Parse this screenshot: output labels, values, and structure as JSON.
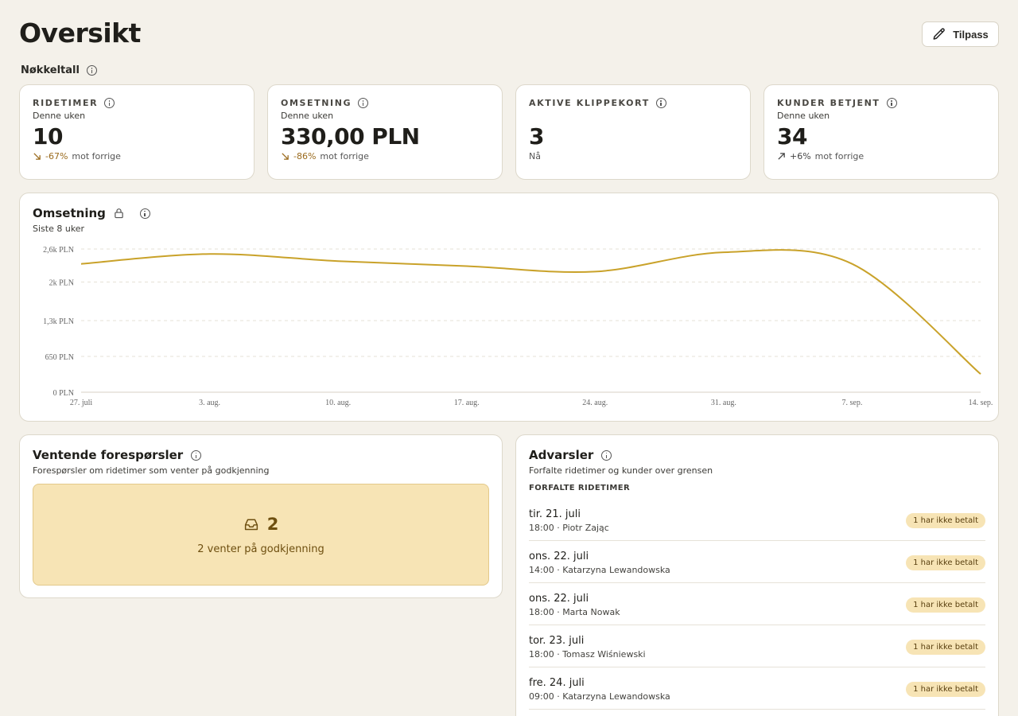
{
  "header": {
    "title": "Oversikt",
    "customize_label": "Tilpass"
  },
  "kpi_section": {
    "label": "Nøkkeltall"
  },
  "kpis": [
    {
      "title": "RIDETIMER",
      "sub": "Denne uken",
      "value": "10",
      "change": "-67%",
      "change_suffix": "mot forrige",
      "direction": "down"
    },
    {
      "title": "OMSETNING",
      "sub": "Denne uken",
      "value": "330,00 PLN",
      "change": "-86%",
      "change_suffix": "mot forrige",
      "direction": "down"
    },
    {
      "title": "AKTIVE KLIPPEKORT",
      "sub": "",
      "value": "3",
      "change": "",
      "change_suffix": "Nå",
      "direction": "none"
    },
    {
      "title": "KUNDER BETJENT",
      "sub": "Denne uken",
      "value": "34",
      "change": "+6%",
      "change_suffix": "mot forrige",
      "direction": "up"
    }
  ],
  "revenue_chart": {
    "title": "Omsetning",
    "subtitle": "Siste 8 uker"
  },
  "chart_data": {
    "type": "line",
    "title": "Omsetning",
    "subtitle": "Siste 8 uker",
    "x": [
      "27. juli",
      "3. aug.",
      "10. aug.",
      "17. aug.",
      "24. aug.",
      "31. aug.",
      "7. sep.",
      "14. sep."
    ],
    "series": [
      {
        "values": [
          2330,
          2510,
          2380,
          2290,
          2190,
          2540,
          2330,
          330
        ]
      }
    ],
    "yticks": [
      0,
      650,
      1300,
      2000,
      2600
    ],
    "yticklabels": [
      "0 PLN",
      "650 PLN",
      "1,3k PLN",
      "2k PLN",
      "2,6k PLN"
    ],
    "ylim": [
      0,
      2600
    ],
    "grid": true,
    "color": "#c9a22a"
  },
  "pending": {
    "title": "Ventende forespørsler",
    "subtitle": "Forespørsler om ridetimer som venter på godkjenning",
    "count": "2",
    "text": "2 venter på godkjenning"
  },
  "alerts": {
    "title": "Advarsler",
    "subtitle": "Forfalte ridetimer og kunder over grensen",
    "section_heading": "FORFALTE RIDETIMER",
    "items": [
      {
        "date": "tir. 21. juli",
        "meta": "18:00 · Piotr Zając",
        "badge": "1 har ikke betalt"
      },
      {
        "date": "ons. 22. juli",
        "meta": "14:00 · Katarzyna Lewandowska",
        "badge": "1 har ikke betalt"
      },
      {
        "date": "ons. 22. juli",
        "meta": "18:00 · Marta Nowak",
        "badge": "1 har ikke betalt"
      },
      {
        "date": "tor. 23. juli",
        "meta": "18:00 · Tomasz Wiśniewski",
        "badge": "1 har ikke betalt"
      },
      {
        "date": "fre. 24. juli",
        "meta": "09:00 · Katarzyna Lewandowska",
        "badge": "1 har ikke betalt"
      }
    ]
  }
}
